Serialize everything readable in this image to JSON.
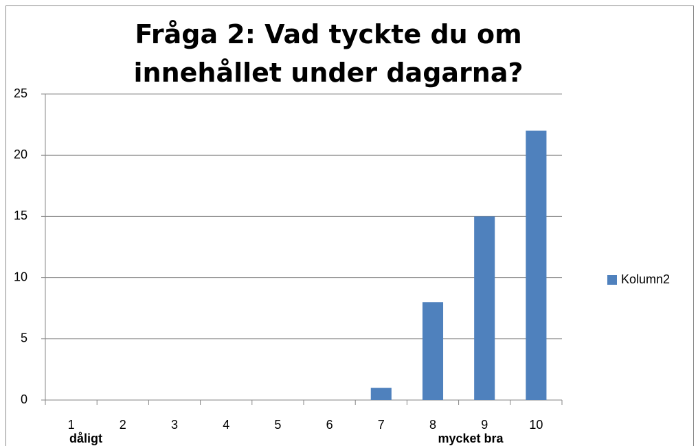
{
  "chart_data": {
    "type": "bar",
    "title": "Fråga 2: Vad tyckte du om innehållet under dagarna?",
    "categories": [
      "1",
      "2",
      "3",
      "4",
      "5",
      "6",
      "7",
      "8",
      "9",
      "10"
    ],
    "series": [
      {
        "name": "Kolumn2",
        "color": "#4f81bd",
        "values": [
          0,
          0,
          0,
          0,
          0,
          0,
          1,
          8,
          15,
          22
        ]
      }
    ],
    "ylim": [
      0,
      25
    ],
    "yticks": [
      0,
      5,
      10,
      15,
      20,
      25
    ],
    "grid": true,
    "legend": "right",
    "annotations": [
      "dåligt",
      "mycket bra"
    ]
  }
}
